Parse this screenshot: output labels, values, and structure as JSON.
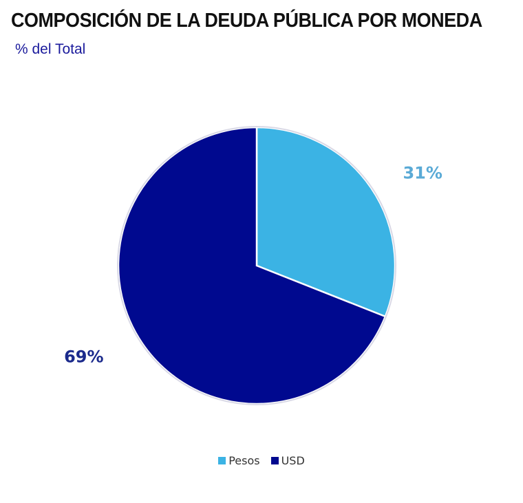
{
  "chart_data": {
    "type": "pie",
    "title": "COMPOSICIÓN DE LA DEUDA PÚBLICA POR MONEDA",
    "subtitle": "% del Total",
    "categories": [
      "Pesos",
      "USD"
    ],
    "values": [
      31,
      69
    ],
    "labels": [
      "31%",
      "69%"
    ],
    "colors": [
      "#3bb3e4",
      "#00098f"
    ],
    "label_colors": [
      "#5aaad6",
      "#1b2a8c"
    ],
    "legend_position": "bottom"
  }
}
